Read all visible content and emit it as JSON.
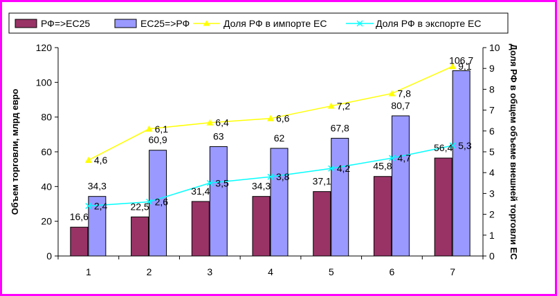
{
  "colors": {
    "frame": "#ff00ff",
    "bar_series_1": "#993366",
    "bar_series_2": "#9999ff",
    "line_import": "#ffff00",
    "line_export": "#00ffff"
  },
  "chart_data": {
    "type": "bar",
    "categories": [
      "1",
      "2",
      "3",
      "4",
      "5",
      "6",
      "7"
    ],
    "series": [
      {
        "name": "РФ=>ЕС25",
        "kind": "bar",
        "axis": "left",
        "values": [
          16.6,
          22.5,
          31.4,
          34.3,
          37.1,
          45.8,
          56.4
        ],
        "labels": [
          "16,6",
          "22,5",
          "31,4",
          "34,3",
          "37,1",
          "45,8",
          "56,4"
        ]
      },
      {
        "name": "ЕС25=>РФ",
        "kind": "bar",
        "axis": "left",
        "values": [
          34.3,
          60.9,
          63,
          62,
          67.8,
          80.7,
          106.7
        ],
        "labels": [
          "34,3",
          "60,9",
          "63",
          "62",
          "67,8",
          "80,7",
          "106,7"
        ]
      },
      {
        "name": "Доля РФ  в импорте ЕС",
        "kind": "line",
        "axis": "right",
        "marker": "triangle",
        "values": [
          4.6,
          6.1,
          6.4,
          6.6,
          7.2,
          7.8,
          9.1
        ],
        "labels": [
          "4,6",
          "6,1",
          "6,4",
          "6,6",
          "7,2",
          "7,8",
          "9,1"
        ]
      },
      {
        "name": "Доля РФ  в экспорте ЕС",
        "kind": "line",
        "axis": "right",
        "marker": "x",
        "values": [
          2.4,
          2.6,
          3.5,
          3.8,
          4.2,
          4.7,
          5.3
        ],
        "labels": [
          "2,4",
          "2,6",
          "3,5",
          "3,8",
          "4,2",
          "4,7",
          "5,3"
        ]
      }
    ],
    "y_left": {
      "range": [
        0,
        120
      ],
      "ticks": [
        "0",
        "20",
        "40",
        "60",
        "80",
        "100",
        "120"
      ],
      "label": "Объем торговли, млрд евро"
    },
    "y_right": {
      "range": [
        0,
        10
      ],
      "ticks": [
        "0",
        "1",
        "2",
        "3",
        "4",
        "5",
        "6",
        "7",
        "8",
        "9",
        "10"
      ],
      "label": "Доля РФ в общем объеме внешней торговли ЕС"
    },
    "grid": false,
    "legend": "top"
  }
}
